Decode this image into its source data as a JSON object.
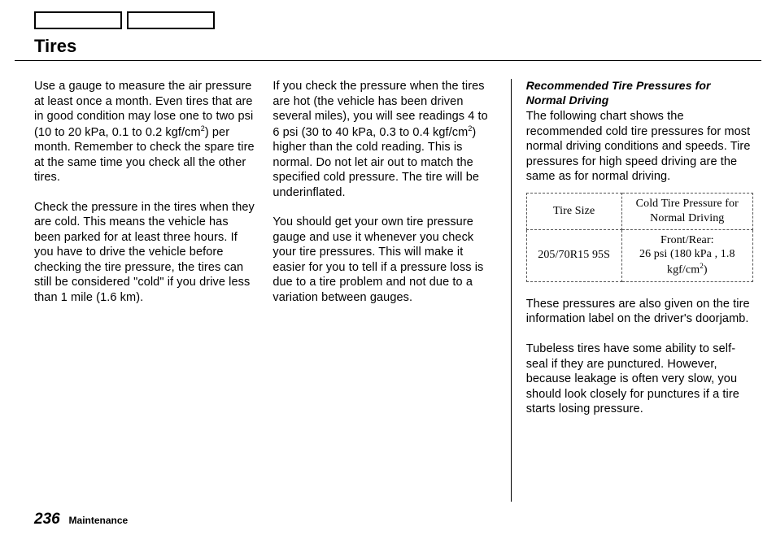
{
  "header": {
    "title": "Tires"
  },
  "col1": {
    "p1_html": "Use a gauge to measure the air pressure at least once a month. Even tires that are in good condition may lose one to two psi (10 to 20 kPa, 0.1 to 0.2 kgf/cm<span class=\"sup\">2</span>) per month. Remember to check the spare tire at the same time you check all the other tires.",
    "p2": "Check the pressure in the tires when they are cold. This means the vehicle has been parked for at least three hours. If you have to drive the vehicle before checking the tire pressure, the tires can still be considered \"cold\" if you drive less than 1 mile (1.6 km)."
  },
  "col2": {
    "p1_html": "If you check the pressure when the tires are hot (the vehicle has been driven several miles), you will see readings 4 to 6 psi (30 to 40 kPa, 0.3 to 0.4 kgf/cm<span class=\"sup\">2</span>) higher than the cold reading. This is normal. Do not let air out to match the specified cold pressure. The tire will be underinflated.",
    "p2": "You should get your own tire pressure gauge and use it whenever you check your tire pressures. This will make it easier for you to tell if a pressure loss is due to a tire problem and not due to a variation between gauges."
  },
  "col3": {
    "subhead": "Recommended Tire Pressures for Normal Driving",
    "p1": "The following chart shows the recommended cold tire pressures for most normal driving conditions and speeds. Tire pressures for high speed driving are the same as for normal driving.",
    "table": {
      "col1_header": "Tire Size",
      "col2_header": "Cold Tire Pressure for Normal Driving",
      "row_size": "205/70R15 95S",
      "row_pressure_html": "Front/Rear:<br>26 psi (180 kPa , 1.8 kgf/cm<span class=\"sup\">2</span>)"
    },
    "p2": "These pressures are also given on the tire information label on the driver's doorjamb.",
    "p3": "Tubeless tires have some ability to self-seal if they are punctured. However, because leakage is often very slow, you should look closely for punctures if a tire starts losing pressure."
  },
  "footer": {
    "page_number": "236",
    "section": "Maintenance"
  }
}
